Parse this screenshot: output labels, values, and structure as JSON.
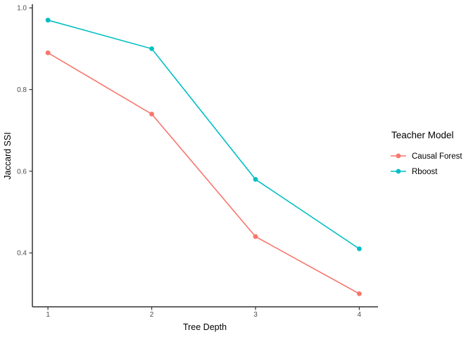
{
  "chart_data": {
    "type": "line",
    "title": "",
    "xlabel": "Tree Depth",
    "ylabel": "Jaccard SSI",
    "x": [
      1,
      2,
      3,
      4
    ],
    "x_tick_labels": [
      "1",
      "2",
      "3",
      "4"
    ],
    "y_ticks": [
      0.4,
      0.6,
      0.8,
      1.0
    ],
    "y_tick_labels": [
      "0.4",
      "0.6",
      "0.8",
      "1.0"
    ],
    "xlim": [
      0.85,
      4.18
    ],
    "ylim": [
      0.268,
      1.009
    ],
    "grid": false,
    "legend_position": "right",
    "legend_title": "Teacher Model",
    "series": [
      {
        "name": "Causal Forest",
        "color": "#F8766D",
        "values": [
          0.89,
          0.74,
          0.44,
          0.3
        ]
      },
      {
        "name": "Rboost",
        "color": "#00BFC4",
        "values": [
          0.97,
          0.9,
          0.58,
          0.41
        ]
      }
    ],
    "axis_color": "#333333",
    "tick_label_color": "#4d4d4d"
  }
}
